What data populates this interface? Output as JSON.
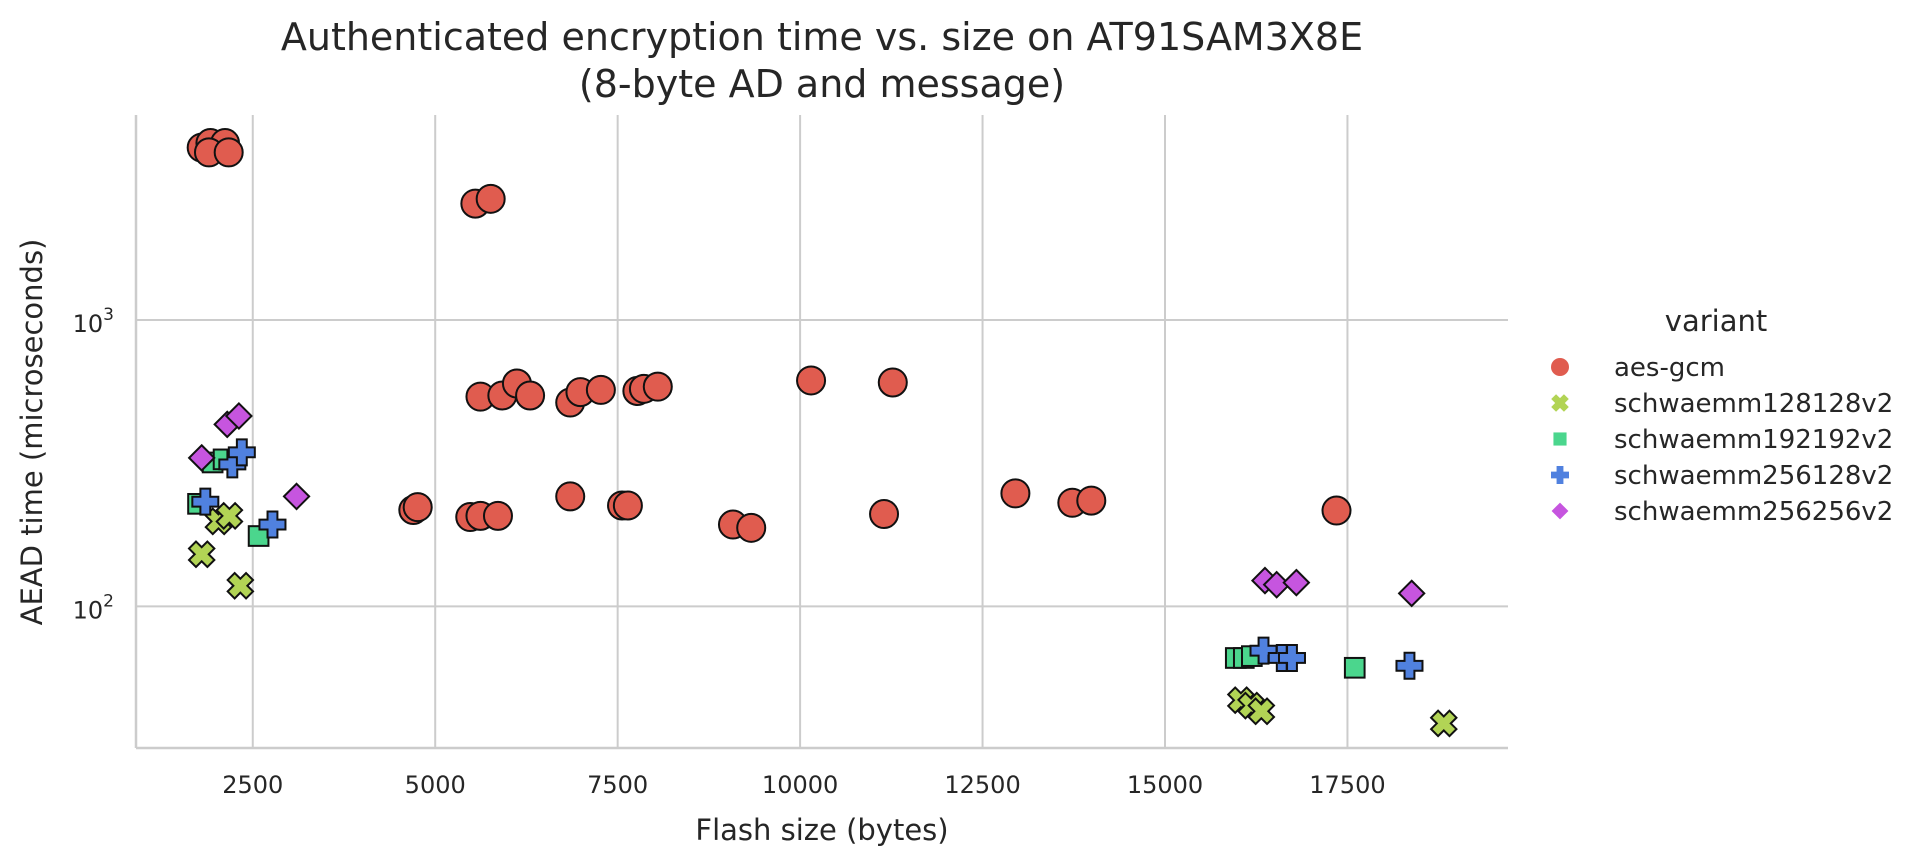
{
  "chart_data": {
    "type": "scatter",
    "title": "Authenticated encryption time vs. size on AT91SAM3X8E",
    "subtitle": "(8-byte AD and message)",
    "xlabel": "Flash size (bytes)",
    "ylabel": "AEAD time (microseconds)",
    "xlim": [
      900,
      19700
    ],
    "ylim": [
      32,
      5200
    ],
    "yscale": "log",
    "xticks": [
      2500,
      5000,
      7500,
      10000,
      12500,
      15000,
      17500
    ],
    "xtick_labels": [
      "2500",
      "5000",
      "7500",
      "10000",
      "12500",
      "15000",
      "17500"
    ],
    "yticks": [
      100,
      1000
    ],
    "ytick_labels": [
      {
        "base": "10",
        "exp": "2"
      },
      {
        "base": "10",
        "exp": "3"
      }
    ],
    "grid": true,
    "legend": {
      "title": "variant",
      "placement": "right"
    },
    "series": [
      {
        "name": "aes-gcm",
        "marker": "circle",
        "color": "#e05c4f",
        "points": [
          [
            1800,
            4000
          ],
          [
            1920,
            4150
          ],
          [
            2120,
            4150
          ],
          [
            1900,
            3850
          ],
          [
            2170,
            3850
          ],
          [
            5550,
            2550
          ],
          [
            5760,
            2650
          ],
          [
            5620,
            540
          ],
          [
            5920,
            545
          ],
          [
            6120,
            600
          ],
          [
            6300,
            545
          ],
          [
            6850,
            515
          ],
          [
            6990,
            560
          ],
          [
            7270,
            570
          ],
          [
            7770,
            565
          ],
          [
            7860,
            575
          ],
          [
            8050,
            585
          ],
          [
            10150,
            615
          ],
          [
            11270,
            605
          ],
          [
            4700,
            217
          ],
          [
            4760,
            222
          ],
          [
            5480,
            205
          ],
          [
            5620,
            207
          ],
          [
            5860,
            207
          ],
          [
            6850,
            242
          ],
          [
            7560,
            225
          ],
          [
            7640,
            225
          ],
          [
            9080,
            193
          ],
          [
            9330,
            188
          ],
          [
            11150,
            210
          ],
          [
            12950,
            248
          ],
          [
            13730,
            230
          ],
          [
            13990,
            234
          ],
          [
            17350,
            216
          ]
        ]
      },
      {
        "name": "schwaemm128128v2",
        "marker": "x",
        "color": "#b2d455",
        "points": [
          [
            1800,
            152
          ],
          [
            2030,
            198
          ],
          [
            2180,
            207
          ],
          [
            2330,
            118
          ],
          [
            16040,
            47
          ],
          [
            16180,
            45
          ],
          [
            16320,
            43
          ],
          [
            18820,
            39
          ]
        ]
      },
      {
        "name": "schwaemm192192v2",
        "marker": "square",
        "color": "#4bd68d",
        "points": [
          [
            1750,
            228
          ],
          [
            1950,
            318
          ],
          [
            2100,
            326
          ],
          [
            2580,
            176
          ],
          [
            15970,
            66
          ],
          [
            16080,
            66
          ],
          [
            16190,
            67
          ],
          [
            17600,
            61
          ]
        ]
      },
      {
        "name": "schwaemm256128v2",
        "marker": "plus",
        "color": "#5081df",
        "points": [
          [
            1850,
            232
          ],
          [
            2220,
            313
          ],
          [
            2350,
            345
          ],
          [
            2770,
            193
          ],
          [
            16350,
            70
          ],
          [
            16600,
            66
          ],
          [
            16740,
            66
          ],
          [
            18350,
            62
          ]
        ]
      },
      {
        "name": "schwaemm256256v2",
        "marker": "diamond",
        "color": "#c655df",
        "points": [
          [
            1800,
            330
          ],
          [
            2150,
            432
          ],
          [
            2310,
            462
          ],
          [
            3100,
            242
          ],
          [
            16370,
            123
          ],
          [
            16530,
            119
          ],
          [
            16800,
            121
          ],
          [
            18380,
            111
          ]
        ]
      }
    ]
  }
}
